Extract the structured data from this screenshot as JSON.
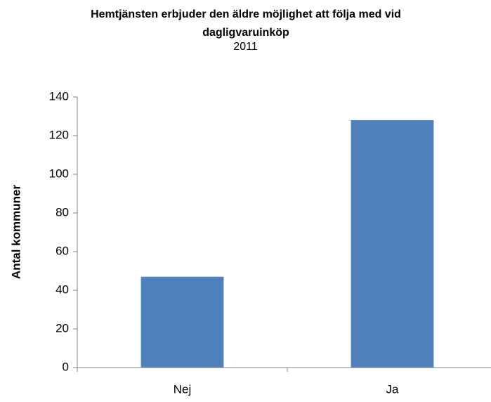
{
  "chart_data": {
    "type": "bar",
    "title": "Hemtjänsten erbjuder den äldre möjlighet att följa med vid dagligvaruinköp",
    "subtitle": "2011",
    "y_label": "Antal kommuner",
    "categories": [
      "Nej",
      "Ja"
    ],
    "values": [
      47,
      128
    ],
    "color": "#4f81bd",
    "ylim": [
      0,
      140
    ],
    "yticks": [
      0,
      20,
      40,
      60,
      80,
      100,
      120,
      140
    ],
    "grid": false
  }
}
